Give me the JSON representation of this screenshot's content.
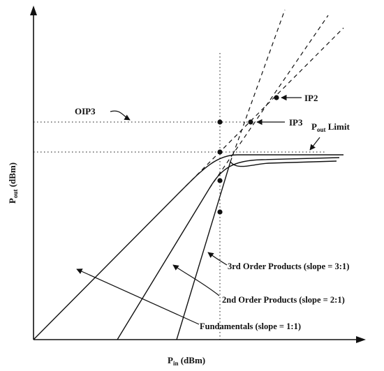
{
  "axes": {
    "x_label_main": "P",
    "x_label_sub": "in",
    "x_label_unit": " (dBm)",
    "y_label_main": "P",
    "y_label_sub": "out",
    "y_label_unit": " (dBm)"
  },
  "labels": {
    "oip3": "OIP3",
    "ip2": "IP2",
    "ip3": "IP3",
    "pout_limit_main": "P",
    "pout_limit_sub": "out",
    "pout_limit_rest": " Limit",
    "third_order": "3rd Order Products (slope = 3:1)",
    "second_order": "2nd Order Products (slope = 2:1)",
    "fundamentals": "Fundamentals (slope = 1:1)"
  },
  "colors": {
    "ink": "#111111",
    "background": "#ffffff"
  }
}
